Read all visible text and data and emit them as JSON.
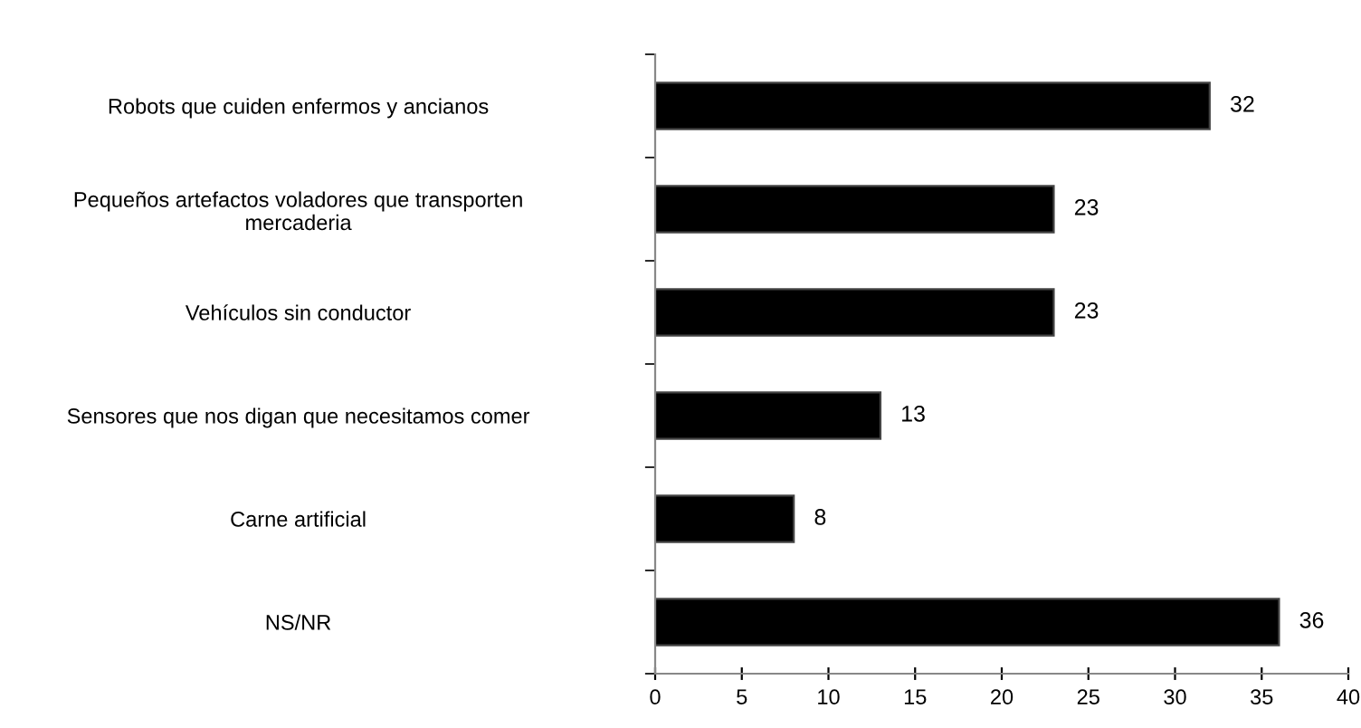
{
  "chart_data": {
    "type": "bar",
    "orientation": "horizontal",
    "categories": [
      "Robots que cuiden enfermos y ancianos",
      "Pequeños artefactos voladores que transporten\nmercaderia",
      "Vehículos sin conductor",
      "Sensores que nos digan que necesitamos comer",
      "Carne artificial",
      "NS/NR"
    ],
    "values": [
      32,
      23,
      23,
      13,
      8,
      36
    ],
    "color": "#000000",
    "data_labels": true,
    "xlim": [
      0,
      40
    ],
    "xticks": [
      0,
      5,
      10,
      15,
      20,
      25,
      30,
      35,
      40
    ],
    "grid": false,
    "legend": false
  }
}
